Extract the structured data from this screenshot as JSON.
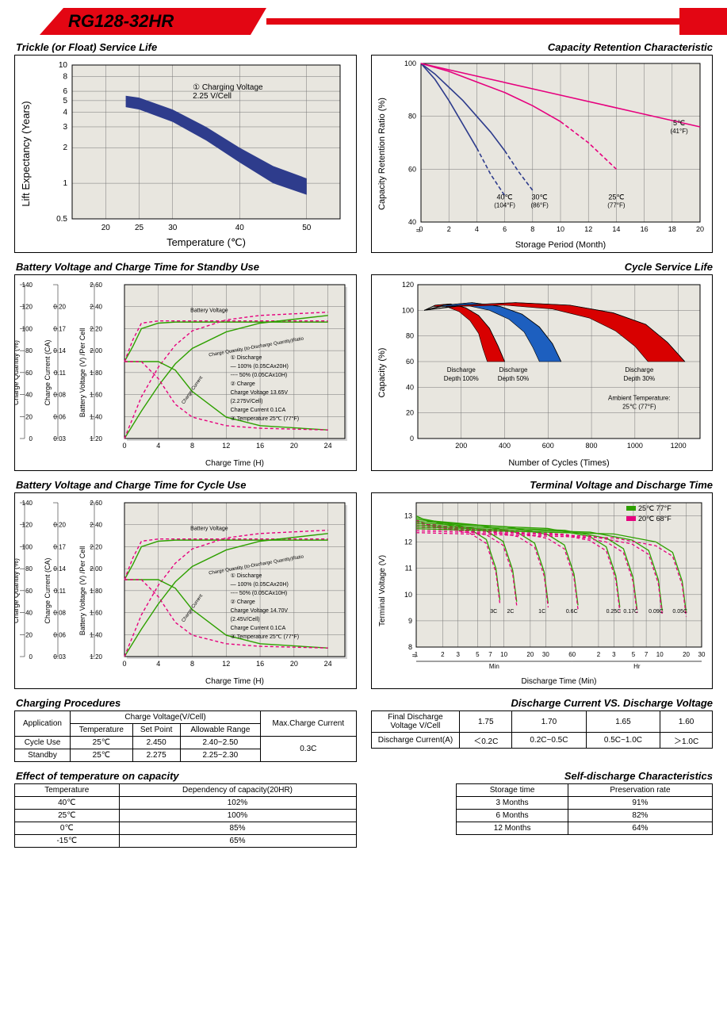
{
  "product_title": "RG128-32HR",
  "trickle": {
    "title": "Trickle (or Float) Service Life",
    "xlabel": "Temperature (℃)",
    "ylabel": "Lift  Expectancy (Years)",
    "note": "① Charging Voltage\\n2.25 V/Cell",
    "xticks": [
      20,
      25,
      30,
      40,
      50
    ],
    "yticks": [
      0.5,
      1,
      2,
      3,
      4,
      5,
      6,
      8,
      10
    ],
    "yscale": "log",
    "band": {
      "x": [
        23,
        25,
        30,
        35,
        40,
        45,
        50
      ],
      "upper": [
        5.5,
        5.3,
        4.2,
        3.0,
        2.0,
        1.4,
        1.1
      ],
      "lower": [
        4.4,
        4.2,
        3.3,
        2.3,
        1.5,
        1.0,
        0.8
      ],
      "fill": "#2e3c8c"
    },
    "bg": "#e8e6df"
  },
  "capacity_retention": {
    "title": "Capacity Retention Characteristic",
    "xlabel": "Storage Period (Month)",
    "ylabel": "Capacity Retention Ratio (%)",
    "xlim": [
      0,
      20
    ],
    "xtick_step": 2,
    "ylim": [
      40,
      100
    ],
    "ytick_step": 20,
    "break_mark": true,
    "curves": [
      {
        "label": "40℃",
        "sublabel": "(104°F)",
        "color": "#2e3c8c",
        "x": [
          0,
          1,
          2,
          3,
          4,
          5,
          6
        ],
        "y": [
          100,
          94,
          86,
          77,
          68,
          58,
          50
        ],
        "dash_after": 4.5,
        "tx": 6.0,
        "ty": 48
      },
      {
        "label": "30℃",
        "sublabel": "(86°F)",
        "color": "#2e3c8c",
        "style": "solid",
        "x": [
          0,
          1,
          2,
          3,
          4,
          5,
          6,
          7,
          8
        ],
        "y": [
          100,
          96,
          91,
          86,
          80,
          74,
          67,
          59,
          52
        ],
        "dash_after": 6.5,
        "tx": 8.5,
        "ty": 48
      },
      {
        "label": "25℃",
        "sublabel": "(77°F)",
        "color": "#e6007e",
        "x": [
          0,
          2,
          4,
          6,
          8,
          10,
          12,
          14
        ],
        "y": [
          100,
          97,
          93,
          89,
          84,
          78,
          70,
          60
        ],
        "dash_after": 11,
        "tx": 14,
        "ty": 48
      },
      {
        "label": "5℃",
        "sublabel": "(41°F)",
        "color": "#e6007e",
        "x": [
          0,
          5,
          10,
          15,
          20
        ],
        "y": [
          100,
          94,
          88,
          82,
          76
        ],
        "dash_after": 99,
        "tx": 18.5,
        "ty": 76
      }
    ],
    "bg": "#e8e6df"
  },
  "standby": {
    "title": "Battery Voltage and Charge Time for Standby Use",
    "xlabel": "Charge Time (H)",
    "ylabels": [
      "Charge Quantity (%)",
      "Charge Current (CA)",
      "Battery Voltage (V) /Per Cell"
    ],
    "xlim": [
      0,
      26
    ],
    "xtick_step": 4,
    "qty_ticks": [
      0,
      20,
      40,
      60,
      80,
      100,
      120,
      140
    ],
    "cur_ticks": [
      0.03,
      0.06,
      0.08,
      0.11,
      0.14,
      0.17,
      0.2
    ],
    "volt_ticks": [
      1.2,
      1.4,
      1.6,
      1.8,
      2.0,
      2.2,
      2.4,
      2.6
    ],
    "annotations": [
      "Battery Voltage",
      "Charge Quantity (to-Discharge Quantity)Ratio",
      "Charge Current"
    ],
    "box_text": "① Discharge\\n— 100% (0.05CAx20H)\\n---- 50%   (0.05CAx10H)\\n② Charge\\nCharge Voltage 13.65V\\n(2.275V/Cell)\\nCharge Current 0.1CA\\n③ Temperature 25℃ (77°F)",
    "series": {
      "volt_100": {
        "color": "#2ea000",
        "x": [
          0,
          1,
          2,
          4,
          6,
          10,
          16,
          24
        ],
        "y": [
          1.9,
          2.04,
          2.2,
          2.25,
          2.26,
          2.26,
          2.26,
          2.26
        ]
      },
      "volt_50": {
        "color": "#e6007e",
        "dash": true,
        "x": [
          0,
          1,
          2,
          4,
          6,
          10,
          16,
          24
        ],
        "y": [
          1.9,
          2.1,
          2.25,
          2.27,
          2.27,
          2.27,
          2.27,
          2.27
        ]
      },
      "qty_100": {
        "color": "#2ea000",
        "x": [
          0,
          2,
          4,
          6,
          8,
          12,
          16,
          24
        ],
        "y": [
          0,
          25,
          48,
          68,
          82,
          97,
          105,
          112
        ]
      },
      "qty_50": {
        "color": "#e6007e",
        "dash": true,
        "x": [
          0,
          2,
          4,
          6,
          8,
          12,
          16,
          24
        ],
        "y": [
          0,
          38,
          65,
          85,
          98,
          108,
          112,
          115
        ]
      },
      "cur_100": {
        "color": "#2ea000",
        "x": [
          0,
          2,
          4,
          6,
          8,
          12,
          16,
          24
        ],
        "y": [
          0.11,
          0.11,
          0.11,
          0.1,
          0.075,
          0.045,
          0.035,
          0.03
        ]
      },
      "cur_50": {
        "color": "#e6007e",
        "dash": true,
        "x": [
          0,
          2,
          4,
          6,
          8,
          12,
          16,
          24
        ],
        "y": [
          0.11,
          0.11,
          0.09,
          0.06,
          0.045,
          0.035,
          0.032,
          0.03
        ]
      }
    },
    "bg": "#e8e6df"
  },
  "cycle_life": {
    "title": "Cycle Service Life",
    "xlabel": "Number of Cycles (Times)",
    "ylabel": "Capacity (%)",
    "xlim": [
      0,
      1300
    ],
    "xticks": [
      200,
      400,
      600,
      800,
      1000,
      1200
    ],
    "ylim": [
      0,
      120
    ],
    "ytick_step": 20,
    "ambient": "Ambient Temperature:\\n25℃  (77°F)",
    "groups": [
      {
        "label": "Discharge\\nDepth 100%",
        "fill": "#d80000",
        "tx": 200,
        "upper": {
          "x": [
            30,
            80,
            150,
            220,
            280,
            330,
            370,
            400
          ],
          "y": [
            100,
            104,
            105,
            102,
            96,
            86,
            72,
            60
          ]
        },
        "lower": {
          "x": [
            30,
            70,
            130,
            190,
            240,
            280,
            300,
            320
          ],
          "y": [
            100,
            103,
            103,
            99,
            92,
            82,
            70,
            60
          ]
        }
      },
      {
        "label": "Discharge\\nDepth 50%",
        "fill": "#1d5fbf",
        "tx": 440,
        "upper": {
          "x": [
            30,
            120,
            250,
            380,
            480,
            560,
            620,
            660
          ],
          "y": [
            100,
            104,
            106,
            103,
            97,
            87,
            74,
            60
          ]
        },
        "lower": {
          "x": [
            30,
            110,
            220,
            330,
            420,
            490,
            530,
            560
          ],
          "y": [
            100,
            103,
            104,
            100,
            93,
            83,
            71,
            60
          ]
        }
      },
      {
        "label": "Discharge\\nDepth 30%",
        "fill": "#d80000",
        "tx": 1020,
        "upper": {
          "x": [
            30,
            200,
            450,
            700,
            900,
            1050,
            1150,
            1230
          ],
          "y": [
            100,
            104,
            106,
            104,
            98,
            89,
            75,
            60
          ]
        },
        "lower": {
          "x": [
            30,
            180,
            400,
            620,
            790,
            910,
            1000,
            1060
          ],
          "y": [
            100,
            103,
            104,
            101,
            94,
            84,
            72,
            60
          ]
        }
      }
    ],
    "bg": "#e8e6df"
  },
  "cycle_use": {
    "title": "Battery Voltage and Charge Time for Cycle Use",
    "box_text": "① Discharge\\n— 100% (0.05CAx20H)\\n---- 50%   (0.05CAx10H)\\n② Charge\\nCharge Voltage 14.70V\\n(2.45V/Cell)\\nCharge Current 0.1CA\\n③ Temperature 25℃ (77°F)"
  },
  "terminal": {
    "title": "Terminal Voltage and Discharge Time",
    "xlabel": "Discharge Time (Min)",
    "ylabel": "Terminal Voltage (V)",
    "legend": [
      {
        "color": "#2ea000",
        "label": "25℃ 77°F"
      },
      {
        "color": "#e6007e",
        "label": "20℃ 68°F"
      }
    ],
    "ylim": [
      8,
      13.5
    ],
    "yticks": [
      8,
      9,
      10,
      11,
      12,
      13
    ],
    "xticks_min": [
      1,
      2,
      3,
      5,
      7,
      10,
      20,
      30,
      60
    ],
    "xticks_hr": [
      2,
      3,
      5,
      7,
      10,
      20,
      30
    ],
    "rates": [
      {
        "label": "3C",
        "x60": 9,
        "color": "#333"
      },
      {
        "label": "2C",
        "x60": 14,
        "color": "#333"
      },
      {
        "label": "1C",
        "x60": 32,
        "color": "#333"
      },
      {
        "label": "0.6C",
        "x60": 70,
        "color": "#333"
      },
      {
        "label": "0.25C",
        "x60": 210,
        "color": "#333"
      },
      {
        "label": "0.17C",
        "x60": 330,
        "color": "#333"
      },
      {
        "label": "0.09C",
        "x60": 640,
        "color": "#333"
      },
      {
        "label": "0.05C",
        "x60": 1200,
        "color": "#333"
      }
    ],
    "bg": "#e8e6df"
  },
  "charging_proc": {
    "title": "Charging Procedures",
    "header": [
      "Application",
      "Charge Voltage(V/Cell)",
      "Max.Charge Current"
    ],
    "sub": [
      "Temperature",
      "Set Point",
      "Allowable Range"
    ],
    "rows": [
      [
        "Cycle Use",
        "25℃",
        "2.450",
        "2.40~2.50"
      ],
      [
        "Standby",
        "25℃",
        "2.275",
        "2.25~2.30"
      ]
    ],
    "max_current": "0.3C"
  },
  "discharge_current": {
    "title": "Discharge Current VS. Discharge Voltage",
    "r1": [
      "Final Discharge Voltage V/Cell",
      "1.75",
      "1.70",
      "1.65",
      "1.60"
    ],
    "r2": [
      "Discharge Current(A)",
      "＜0.2C",
      "0.2C~0.5C",
      "0.5C~1.0C",
      "＞1.0C"
    ]
  },
  "temp_effect": {
    "title": "Effect of temperature on capacity",
    "headers": [
      "Temperature",
      "Dependency of capacity(20HR)"
    ],
    "rows": [
      [
        "40℃",
        "102%"
      ],
      [
        "25℃",
        "100%"
      ],
      [
        "0℃",
        "85%"
      ],
      [
        "-15℃",
        "65%"
      ]
    ]
  },
  "self_discharge": {
    "title": "Self-discharge Characteristics",
    "headers": [
      "Storage time",
      "Preservation rate"
    ],
    "rows": [
      [
        "3 Months",
        "91%"
      ],
      [
        "6 Months",
        "82%"
      ],
      [
        "12 Months",
        "64%"
      ]
    ]
  }
}
